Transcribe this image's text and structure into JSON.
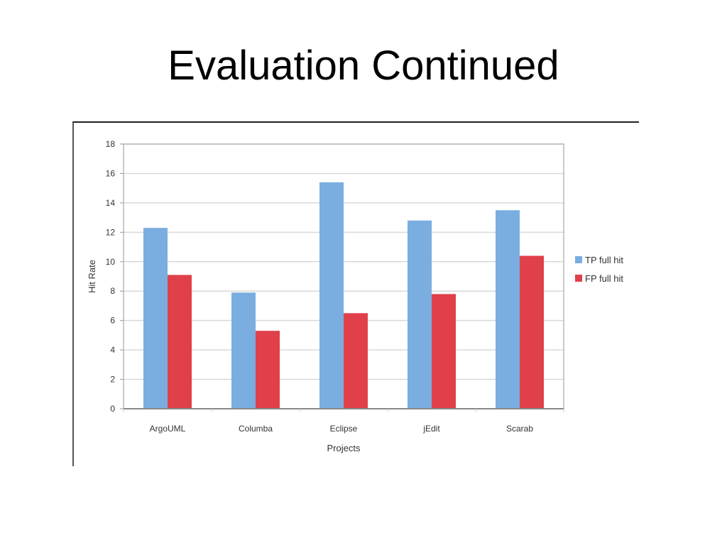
{
  "slide": {
    "title": "Evaluation Continued"
  },
  "chart_data": {
    "type": "bar",
    "title": "",
    "xlabel": "Projects",
    "ylabel": "Hit Rate",
    "categories": [
      "ArgoUML",
      "Columba",
      "Eclipse",
      "jEdit",
      "Scarab"
    ],
    "series": [
      {
        "name": "TP full hit",
        "color": "#7aaee0",
        "values": [
          12.3,
          7.9,
          15.4,
          12.8,
          13.5
        ]
      },
      {
        "name": "FP full hit",
        "color": "#e0404a",
        "values": [
          9.1,
          5.3,
          6.5,
          7.8,
          10.4
        ]
      }
    ],
    "ylim": [
      0,
      18
    ],
    "yticks": [
      0,
      2,
      4,
      6,
      8,
      10,
      12,
      14,
      16,
      18
    ],
    "grid": true,
    "legend_position": "right"
  }
}
